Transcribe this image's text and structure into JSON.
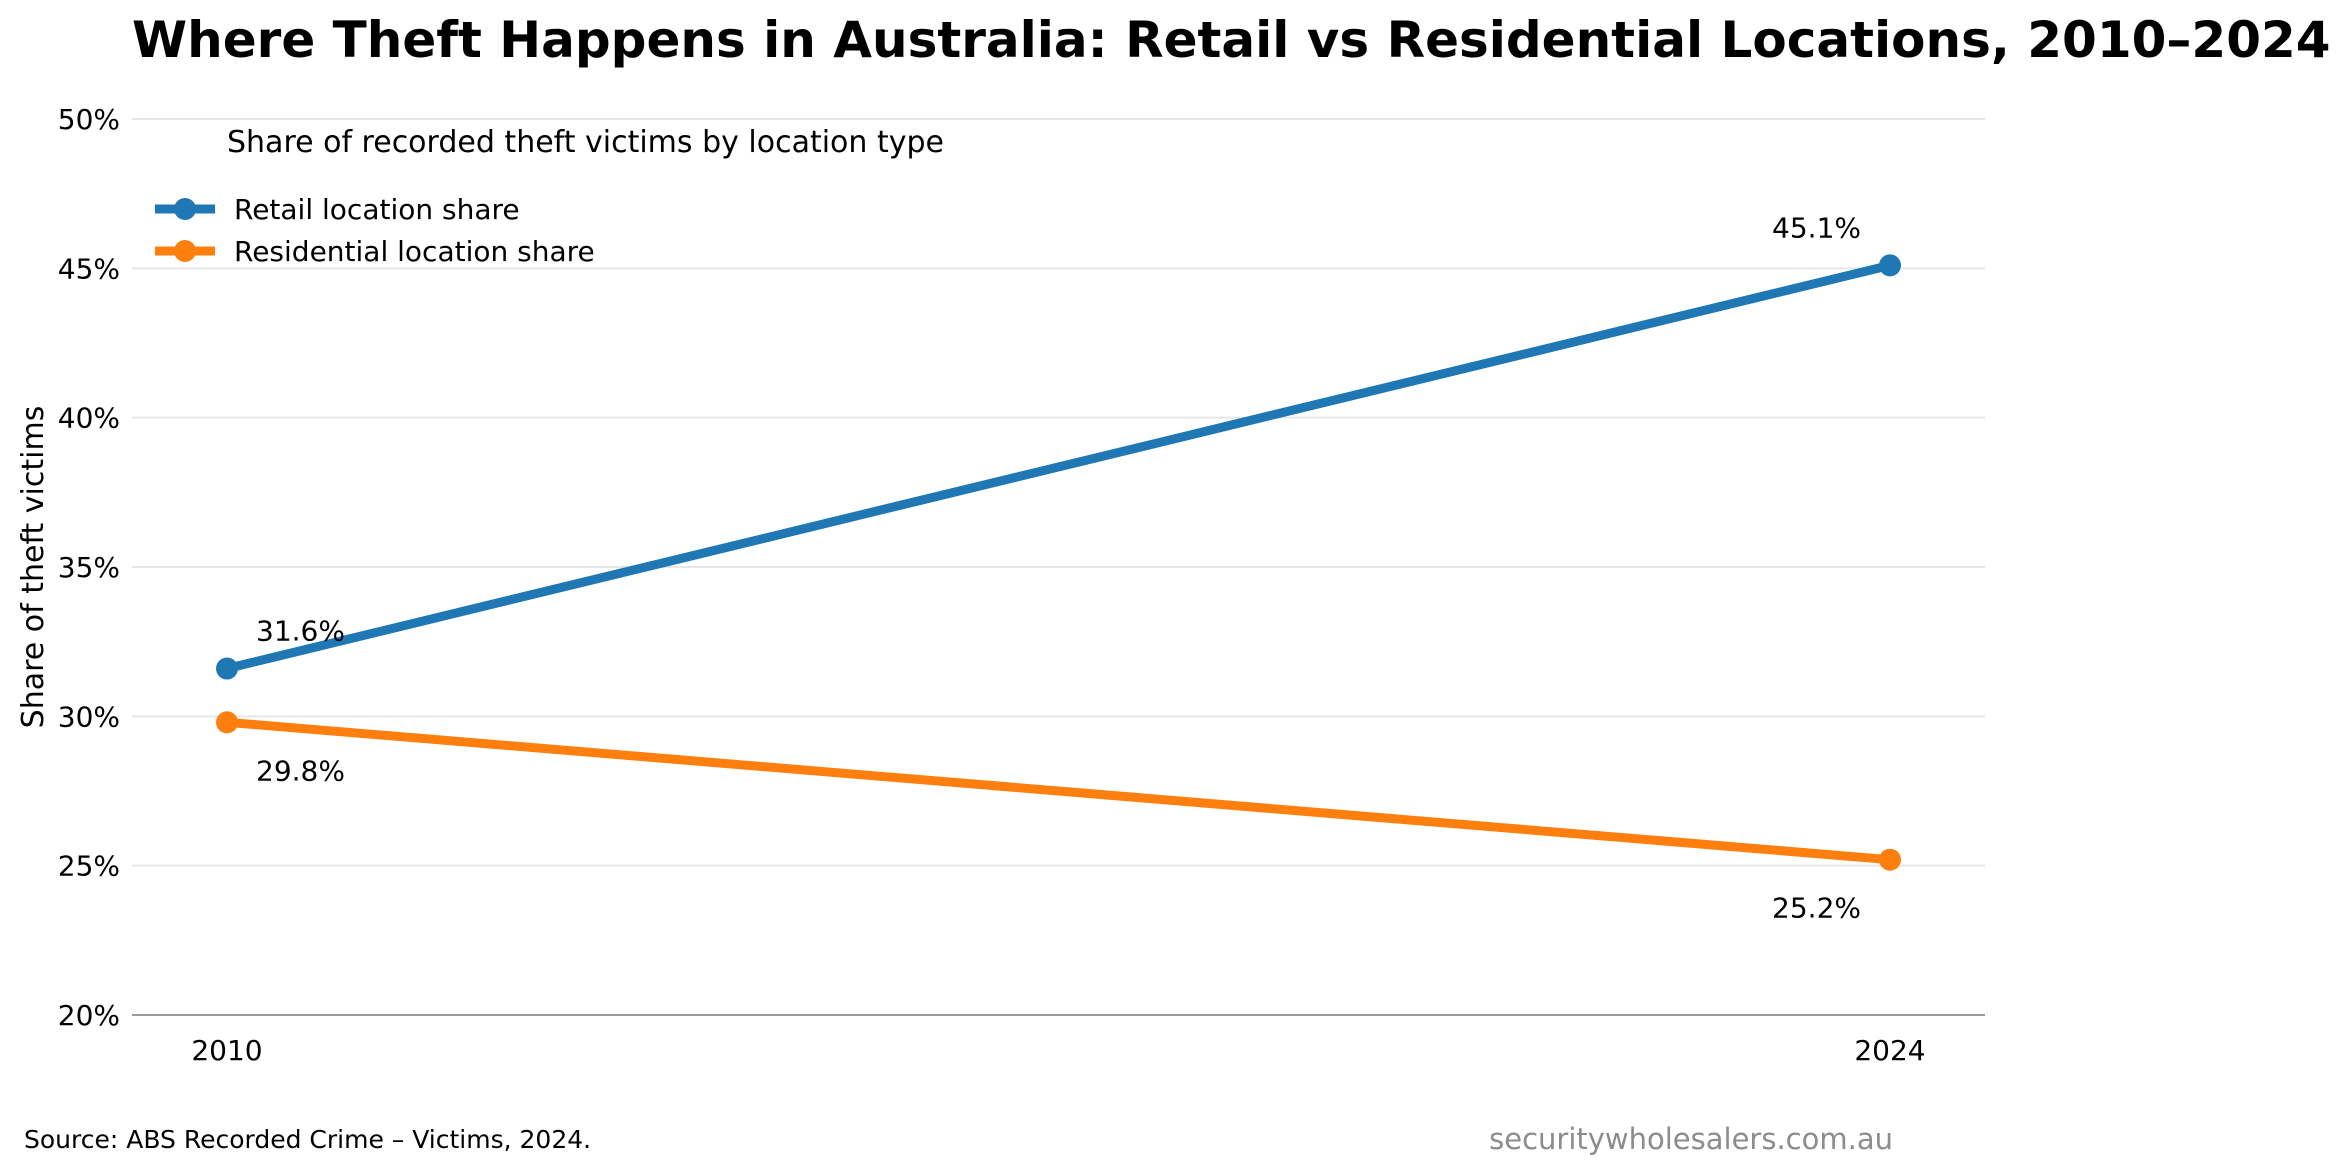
{
  "chart_data": {
    "type": "line",
    "title": "Where Theft Happens in Australia: Retail vs Residential Locations, 2010–2024",
    "ylabel": "Share of theft victims",
    "xlabel": "",
    "x": [
      "2010",
      "2024"
    ],
    "ylim": [
      20,
      50
    ],
    "yticks": [
      20,
      25,
      30,
      35,
      40,
      45,
      50
    ],
    "ytick_labels": [
      "20%",
      "25%",
      "30%",
      "35%",
      "40%",
      "45%",
      "50%"
    ],
    "grid": "horizontal",
    "legend": {
      "title": "Share of recorded theft victims by location type",
      "placement": "top-left"
    },
    "series": [
      {
        "name": "Retail location share",
        "values": [
          31.6,
          45.1
        ],
        "labels": [
          "31.6%",
          "45.1%"
        ],
        "color": "#1f77b4"
      },
      {
        "name": "Residential location share",
        "values": [
          29.8,
          25.2
        ],
        "labels": [
          "29.8%",
          "25.2%"
        ],
        "color": "#ff7f0e"
      }
    ],
    "source": "Source: ABS Recorded Crime – Victims, 2024.",
    "watermark": "securitywholesalers.com.au"
  }
}
